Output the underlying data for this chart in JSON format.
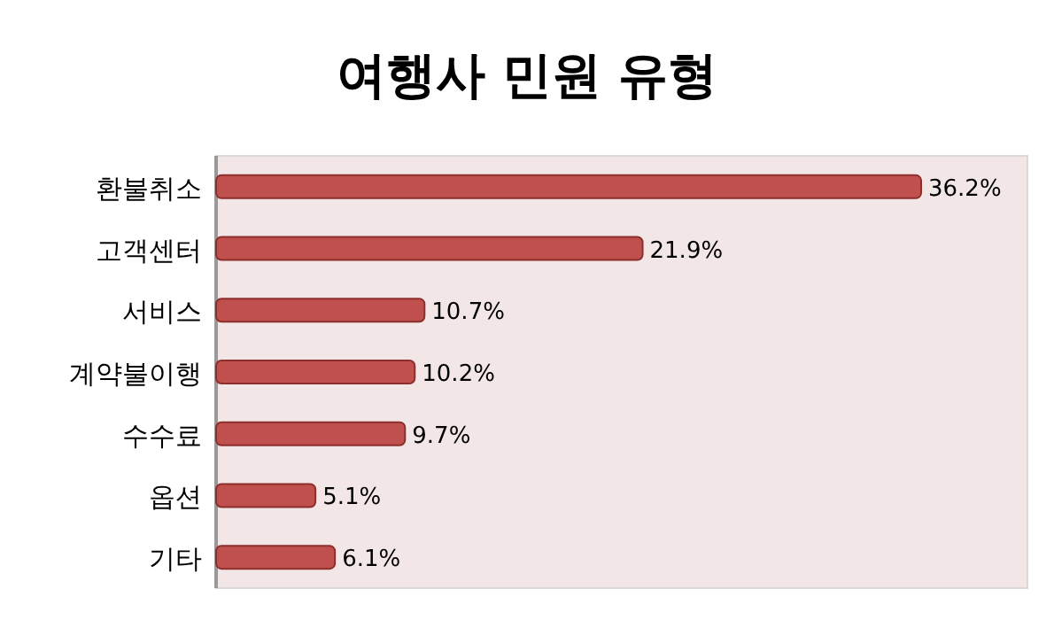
{
  "chart_data": {
    "type": "bar",
    "orientation": "horizontal",
    "title": "여행사 민원 유형",
    "categories": [
      "환불취소",
      "고객센터",
      "서비스",
      "계약불이행",
      "수수료",
      "옵션",
      "기타"
    ],
    "values": [
      36.2,
      21.9,
      10.7,
      10.2,
      9.7,
      5.1,
      6.1
    ],
    "color": "#c0504d",
    "value_labels": [
      "36.2%",
      "21.9%",
      "10.7%",
      "10.2%",
      "9.7%",
      "5.1%",
      "6.1%"
    ]
  }
}
